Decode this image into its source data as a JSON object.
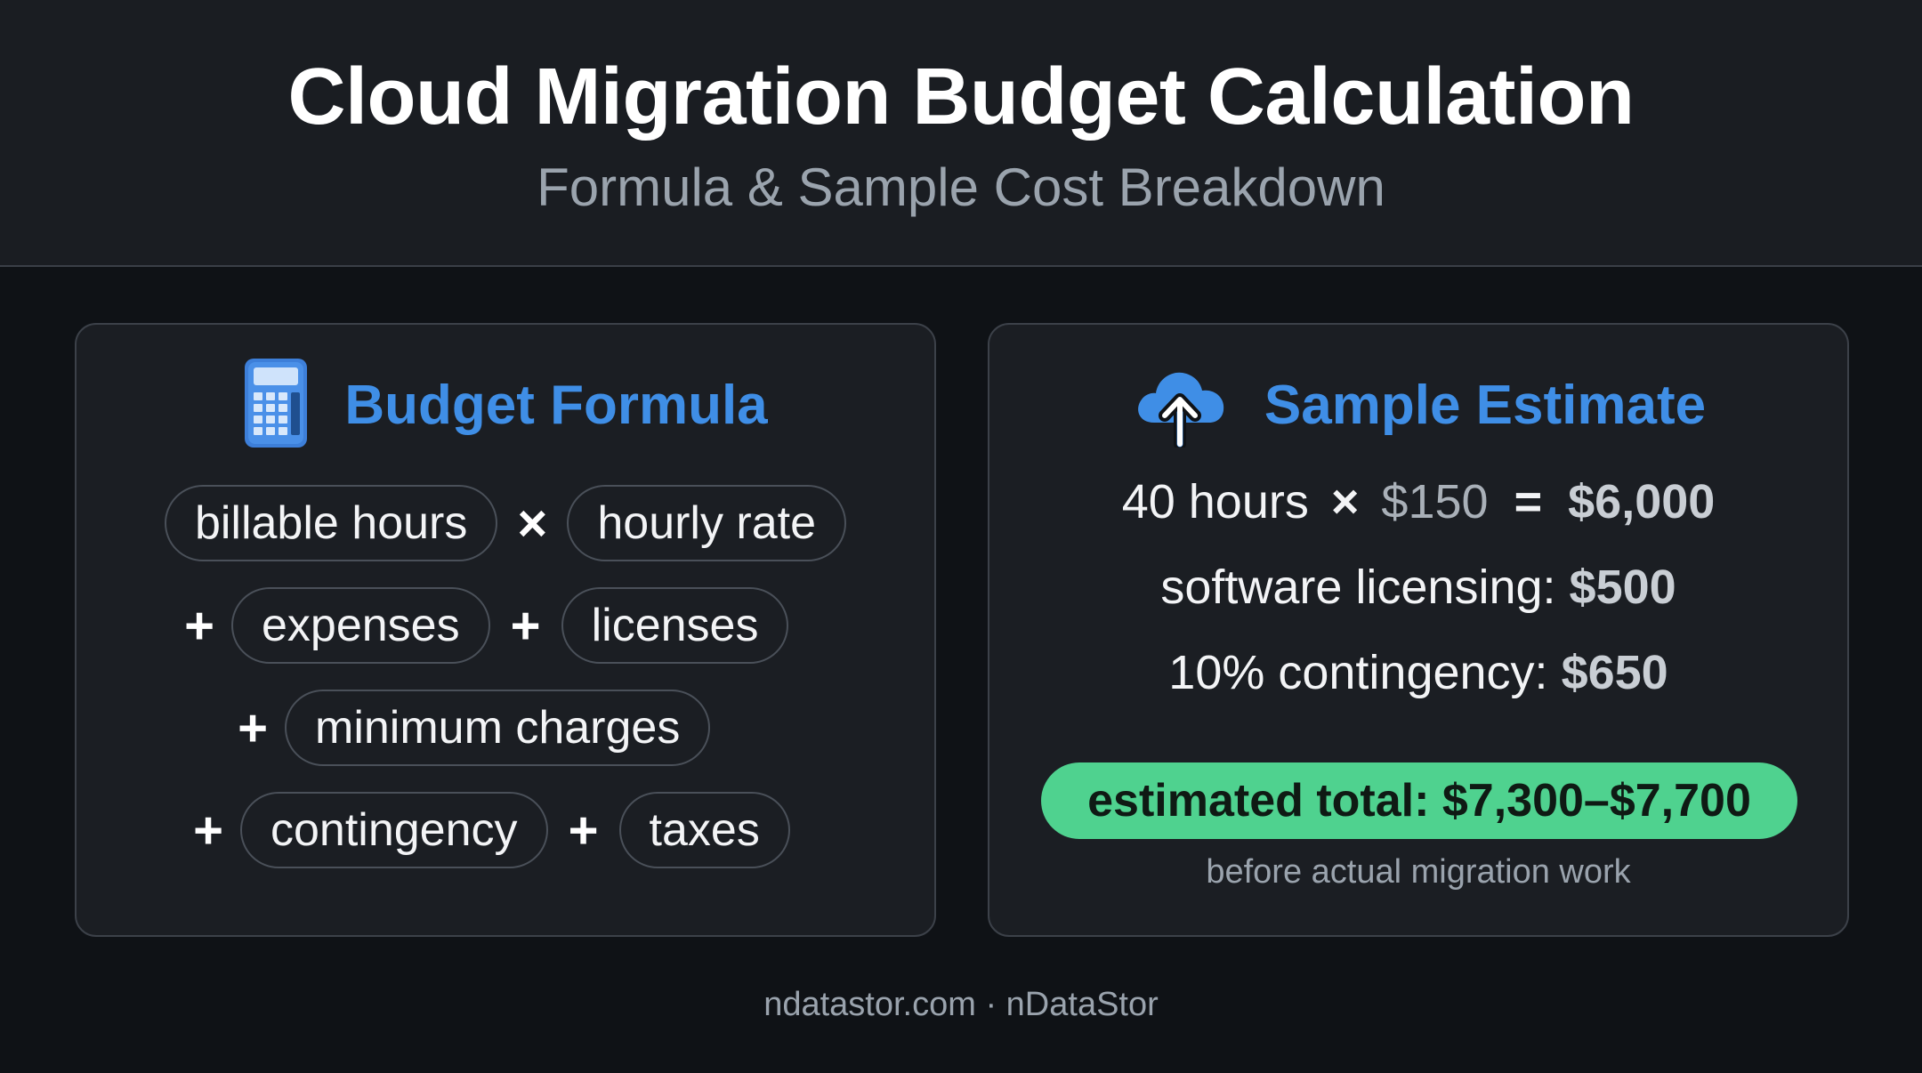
{
  "header": {
    "title": "Cloud Migration Budget Calculation",
    "subtitle": "Formula & Sample Cost Breakdown"
  },
  "formula_panel": {
    "title": "Budget Formula",
    "icon": "calculator-icon",
    "rows": [
      {
        "items": [
          "billable hours",
          "×",
          "hourly rate"
        ]
      },
      {
        "items": [
          "+",
          "expenses",
          "+",
          "licenses"
        ]
      },
      {
        "items": [
          "+",
          "minimum charges"
        ]
      },
      {
        "items": [
          "+",
          "contingency",
          "+",
          "taxes"
        ]
      }
    ]
  },
  "estimate_panel": {
    "title": "Sample Estimate",
    "icon": "cloud-upload-icon",
    "labor": {
      "hours": "40 hours",
      "times": "×",
      "rate": "$150",
      "equals": "=",
      "subtotal": "$6,000"
    },
    "licensing": {
      "label": "software licensing:",
      "value": "$500"
    },
    "contingency": {
      "label": "10% contingency:",
      "value": "$650"
    },
    "total": "estimated total: $7,300–$7,700",
    "note": "before actual migration work"
  },
  "footer": "ndatastor.com · nDataStor",
  "colors": {
    "accent_blue": "#3f8ee6",
    "total_green": "#4fd28f",
    "background": "#0f1216"
  }
}
